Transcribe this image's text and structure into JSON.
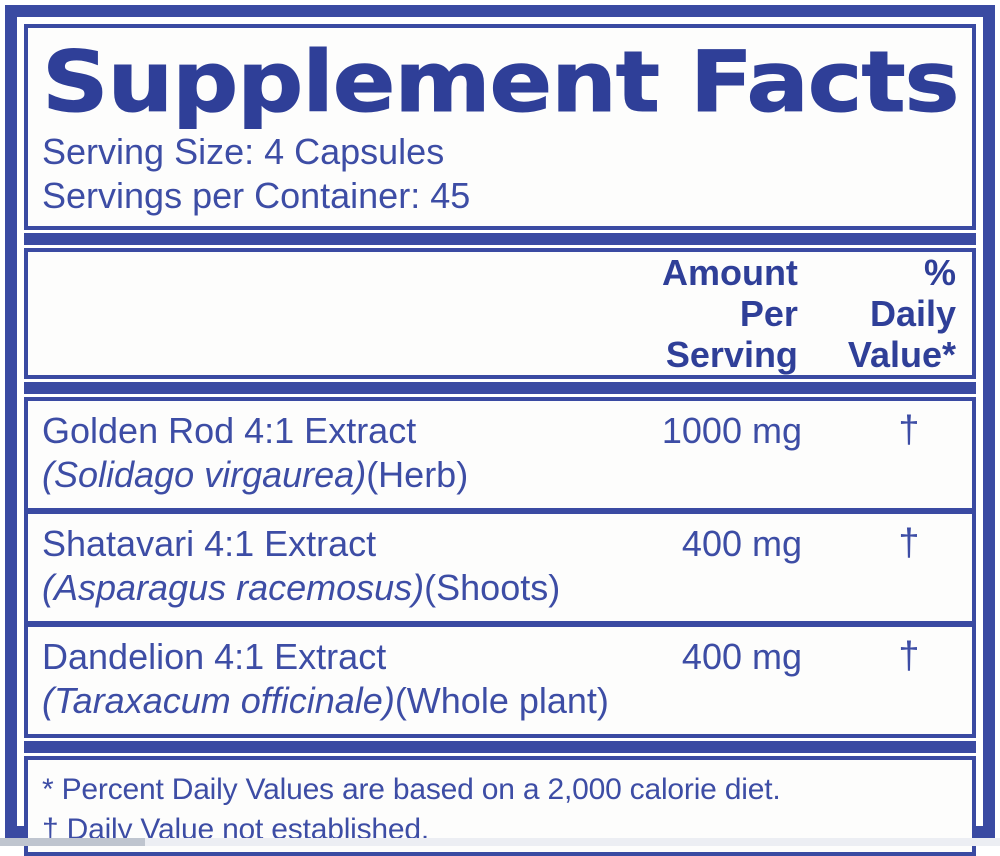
{
  "label": {
    "title": "Supplement Facts",
    "serving_size": "Serving Size: 4 Capsules",
    "servings_per_container": "Servings per Container: 45",
    "header": {
      "amount_line1": "Amount",
      "amount_line2": "Per Serving",
      "dv_line1": "% Daily",
      "dv_line2": "Value*"
    },
    "rows": [
      {
        "name": "Golden Rod 4:1 Extract",
        "latin": "(Solidago virgaurea)",
        "plant_part": "(Herb)",
        "amount": "1000 mg",
        "daily_value": "†"
      },
      {
        "name": "Shatavari 4:1 Extract",
        "latin": "(Asparagus racemosus)",
        "plant_part": "(Shoots)",
        "amount": "400 mg",
        "daily_value": "†"
      },
      {
        "name": "Dandelion 4:1 Extract",
        "latin": "(Taraxacum officinale)",
        "plant_part": "(Whole plant)",
        "amount": "400 mg",
        "daily_value": "†"
      }
    ],
    "footnotes": [
      "* Percent Daily Values are based on a 2,000 calorie diet.",
      "† Daily Value not established."
    ],
    "colors": {
      "panel_blue": "#3a4aa2",
      "title_blue": "#2f3f98",
      "text_blue": "#3d4da5",
      "background": "#ffffff"
    }
  }
}
